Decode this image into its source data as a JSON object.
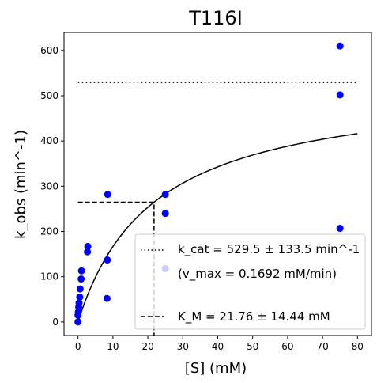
{
  "chart_data": {
    "type": "scatter",
    "title": "T116I",
    "xlabel": "[S] (mM)",
    "ylabel": "k_obs (min^-1)",
    "xlim": [
      -4,
      84
    ],
    "ylim": [
      -30,
      640
    ],
    "xticks": [
      0,
      10,
      20,
      30,
      40,
      50,
      60,
      70,
      80
    ],
    "yticks": [
      0,
      100,
      200,
      300,
      400,
      500,
      600
    ],
    "grid": false,
    "legend_position": "lower-right",
    "colors": {
      "points": "#0000ff",
      "lines": "#000000",
      "axes": "#000000"
    },
    "points": {
      "x": [
        0,
        0,
        0.1,
        0.2,
        0.3,
        0.5,
        0.6,
        0.9,
        1.0,
        2.7,
        2.8,
        8.3,
        8.4,
        8.5,
        25,
        25,
        25,
        75,
        75,
        75
      ],
      "y": [
        0,
        15,
        22,
        33,
        42,
        55,
        73,
        95,
        113,
        155,
        167,
        52,
        137,
        282,
        118,
        240,
        282,
        207,
        502,
        610
      ]
    },
    "fit_curve": {
      "vmax": 529.5,
      "km": 21.76,
      "x_start": 0,
      "x_end": 80
    },
    "kcat_line": {
      "y": 529.5,
      "x_start": 0,
      "x_end": 80
    },
    "km_marker": {
      "x": 21.76,
      "y": 264.75,
      "x_start": 0
    },
    "legend": {
      "kcat_label": "k_cat = 529.5 ± 133.5 min^-1",
      "vmax_label": "(v_max = 0.1692 mM/min)",
      "km_label": "K_M = 21.76 ± 14.44 mM"
    }
  }
}
